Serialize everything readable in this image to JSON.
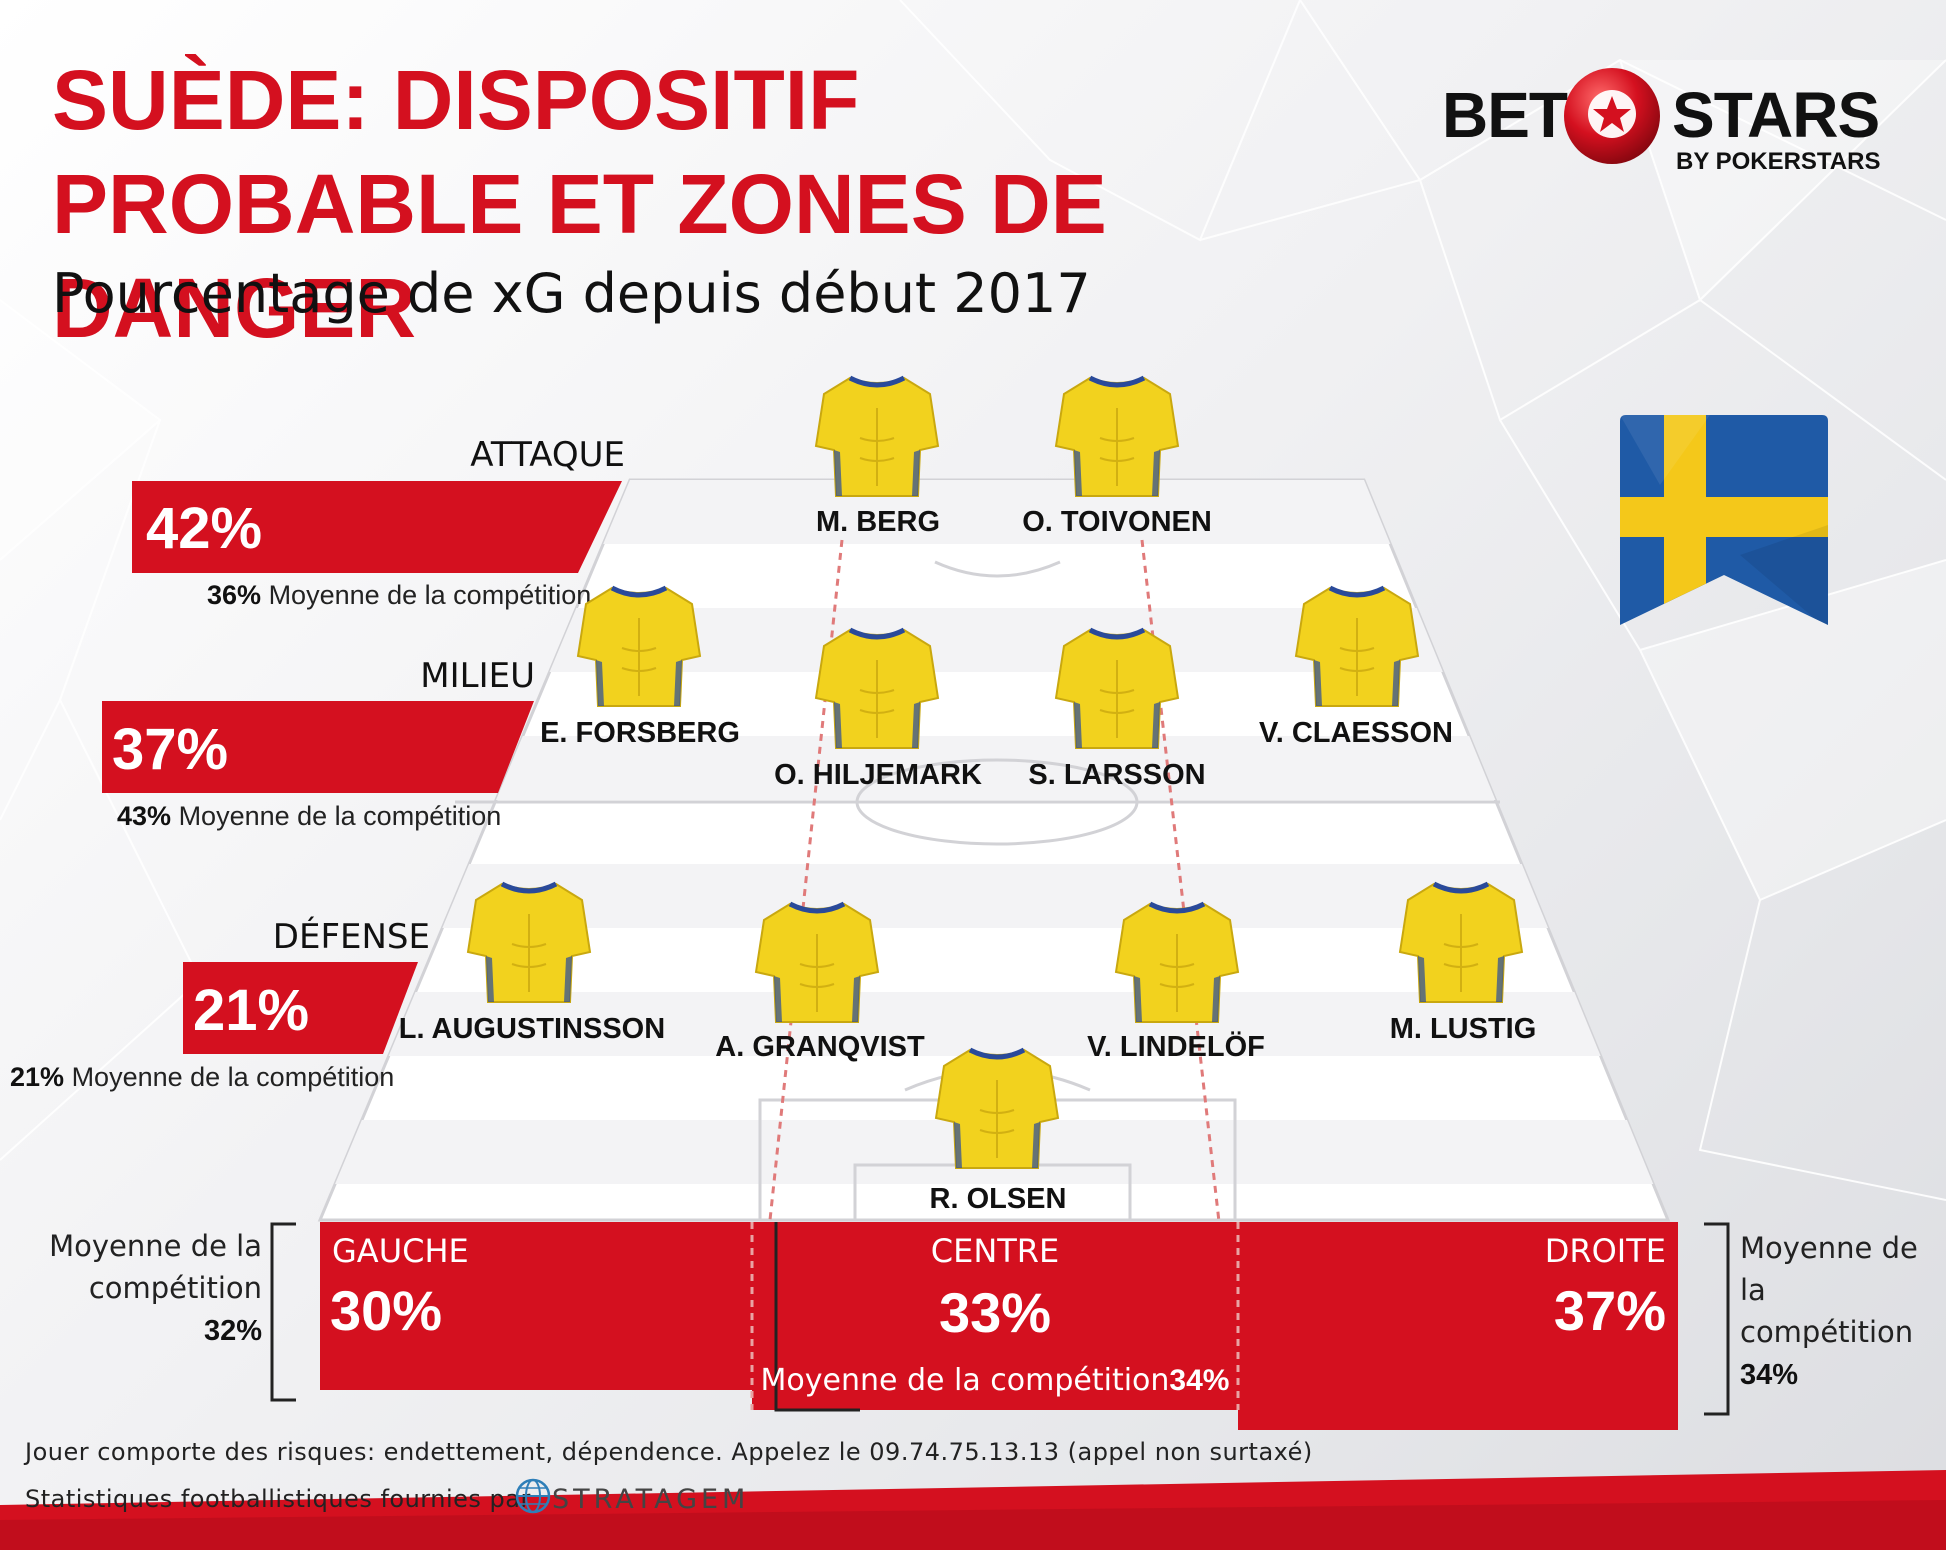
{
  "header": {
    "title_line1": "SUÈDE: DISPOSITIF",
    "title_line2": "PROBABLE ET ZONES DE DANGER",
    "subtitle": "Pourcentage de xG depuis début 2017"
  },
  "logo": {
    "bet": "BET",
    "stars": "STARS",
    "by": "BY POKERSTARS"
  },
  "colors": {
    "accent": "#d4101f",
    "shirt": "#f2d21e",
    "flag_blue": "#1f5aa6",
    "flag_yellow": "#f4c81a"
  },
  "flag": {
    "icon": "sweden-flag-icon"
  },
  "lines": [
    {
      "label": "ATTAQUE",
      "value": "42%",
      "avg_value": "36%",
      "avg_text": "Moyenne de la compétition"
    },
    {
      "label": "MILIEU",
      "value": "37%",
      "avg_value": "43%",
      "avg_text": "Moyenne de la compétition"
    },
    {
      "label": "DÉFENSE",
      "value": "21%",
      "avg_value": "21%",
      "avg_text": "Moyenne de la compétition"
    }
  ],
  "players": {
    "attack": [
      "M. BERG",
      "O. TOIVONEN"
    ],
    "midfield": [
      "E. FORSBERG",
      "O. HILJEMARK",
      "S. LARSSON",
      "V. CLAESSON"
    ],
    "defence": [
      "L. AUGUSTINSSON",
      "A. GRANQVIST",
      "V. LINDELÖF",
      "M. LUSTIG"
    ],
    "goalkeeper": "R. OLSEN"
  },
  "zones": {
    "left": {
      "label": "GAUCHE",
      "value": "30%",
      "avg_line1": "Moyenne de la",
      "avg_line2": "compétition",
      "avg_value": "32%"
    },
    "center": {
      "label": "CENTRE",
      "value": "33%",
      "avg_text": "Moyenne de la compétition",
      "avg_value": "34%"
    },
    "right": {
      "label": "DROITE",
      "value": "37%",
      "avg_line1": "Moyenne de la",
      "avg_line2": "compétition",
      "avg_value": "34%"
    }
  },
  "footer": {
    "disclaimer": "Jouer comporte des risques: endettement, dépendence. Appelez le 09.74.75.13.13 (appel non surtaxé)",
    "credit": "Statistiques footballistiques fournies par",
    "stratagem": "STRATAGEM"
  }
}
